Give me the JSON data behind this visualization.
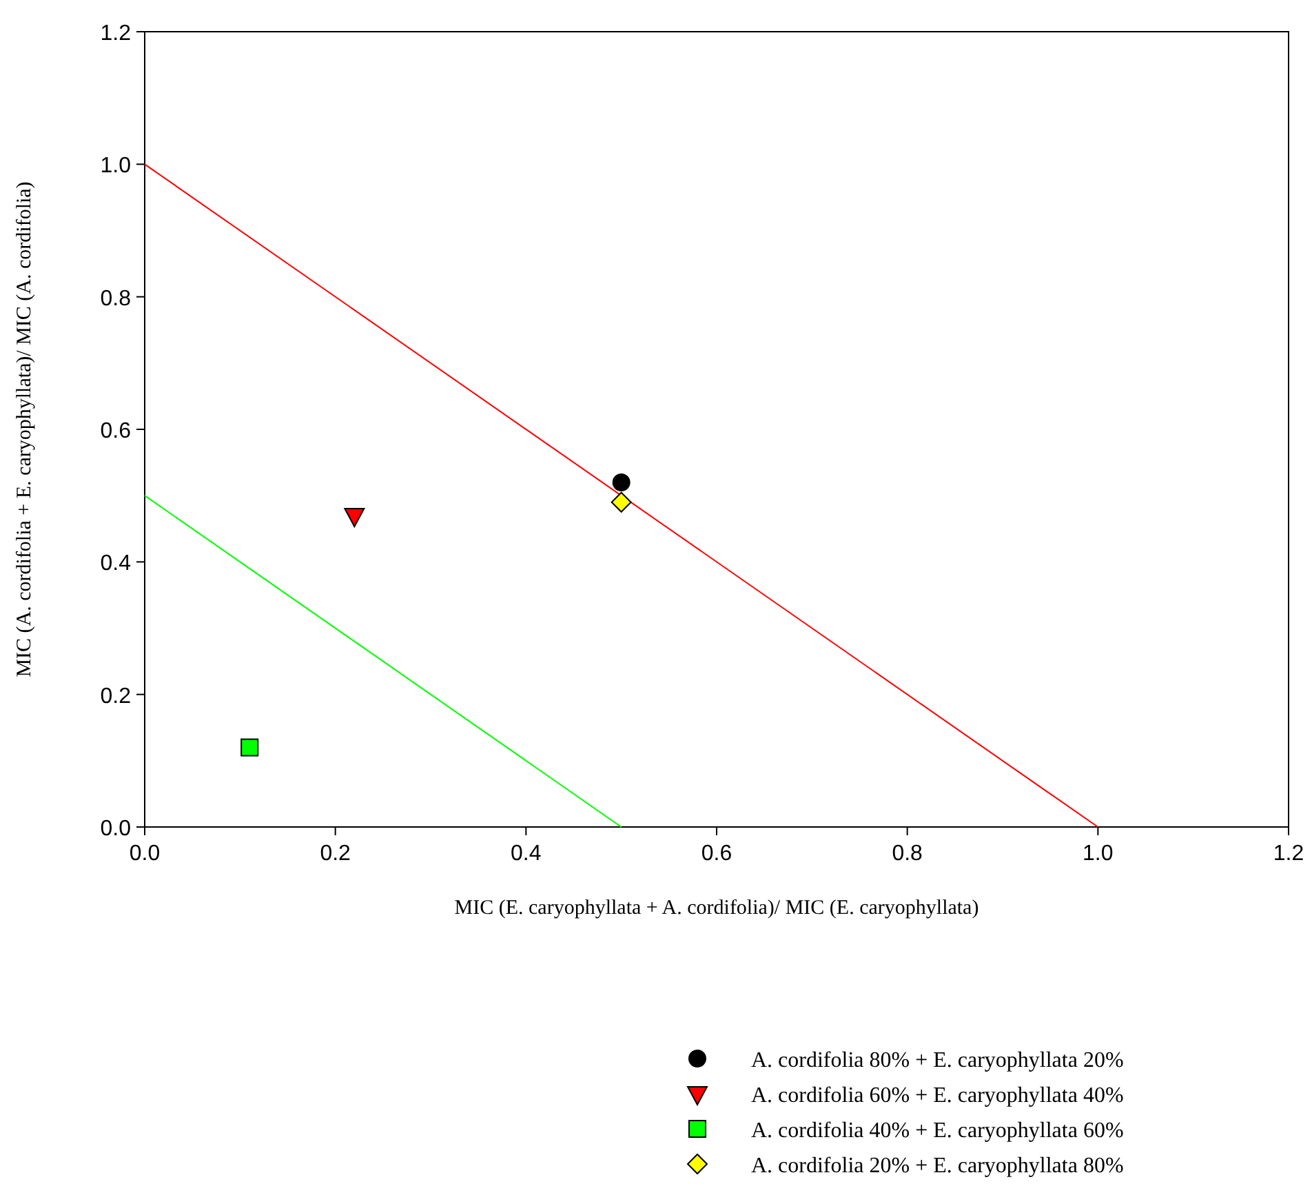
{
  "chart_data": {
    "type": "scatter",
    "xlabel": "MIC (E. caryophyllata + A. cordifolia)/ MIC (E. caryophyllata)",
    "ylabel": "MIC (A. cordifolia + E. caryophyllata)/ MIC (A. cordifolia)",
    "xlim": [
      0,
      1.2
    ],
    "ylim": [
      0,
      1.2
    ],
    "xticks": [
      {
        "value": 0,
        "label": "0.0"
      },
      0.2,
      0.4,
      0.6,
      0.8,
      {
        "value": 1,
        "label": "1.0"
      },
      1.2
    ],
    "yticks": [
      {
        "value": 0,
        "label": "0.0"
      },
      0.2,
      0.4,
      0.6,
      0.8,
      {
        "value": 1,
        "label": "1.0"
      },
      1.2
    ],
    "grid": false,
    "legend": "bottom right",
    "series": [
      {
        "type": "line",
        "color": "#ff0000",
        "x": [
          0,
          1
        ],
        "values": [
          1,
          0
        ],
        "marker": "none"
      },
      {
        "type": "line",
        "color": "#00ff00",
        "x": [
          0,
          0.5
        ],
        "values": [
          0.5,
          0
        ],
        "marker": "none"
      },
      {
        "name": "A. cordifolia 80% + E. caryophyllata 20%",
        "color": "#000000",
        "x": [
          0.5
        ],
        "values": [
          0.52
        ],
        "marker": "circle"
      },
      {
        "name": "A. cordifolia 60% + E. caryophyllata 40%",
        "color": "#ff0000",
        "x": [
          0.22
        ],
        "values": [
          0.47
        ],
        "marker": "triangle"
      },
      {
        "name": "A. cordifolia 40% + E. caryophyllata 60%",
        "color": "#00ff00",
        "x": [
          0.11
        ],
        "values": [
          0.12
        ],
        "marker": "square"
      },
      {
        "name": "A. cordifolia 20% + E. caryophyllata 80%",
        "color": "#ffff00",
        "x": [
          0.5
        ],
        "values": [
          0.49
        ],
        "marker": "diamond"
      }
    ]
  }
}
